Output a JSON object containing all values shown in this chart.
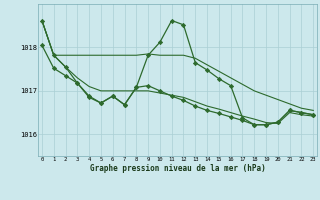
{
  "title": "Graphe pression niveau de la mer (hPa)",
  "background_color": "#cce8ec",
  "grid_color": "#aacfd4",
  "line_color": "#2d6a2d",
  "marker_color": "#2d6a2d",
  "x_ticks": [
    0,
    1,
    2,
    3,
    4,
    5,
    6,
    7,
    8,
    9,
    10,
    11,
    12,
    13,
    14,
    15,
    16,
    17,
    18,
    19,
    20,
    21,
    22,
    23
  ],
  "ylim": [
    1015.5,
    1019.0
  ],
  "yticks": [
    1016,
    1017,
    1018
  ],
  "series_smooth1": [
    1018.62,
    1017.82,
    1017.82,
    1017.82,
    1017.82,
    1017.82,
    1017.82,
    1017.82,
    1017.82,
    1017.85,
    1017.82,
    1017.82,
    1017.82,
    1017.75,
    1017.6,
    1017.45,
    1017.3,
    1017.15,
    1017.0,
    1016.9,
    1016.8,
    1016.7,
    1016.6,
    1016.55
  ],
  "series_smooth2": [
    1018.62,
    1017.82,
    1017.55,
    1017.3,
    1017.1,
    1017.0,
    1017.0,
    1017.0,
    1017.0,
    1017.0,
    1016.95,
    1016.9,
    1016.85,
    1016.75,
    1016.65,
    1016.58,
    1016.5,
    1016.42,
    1016.35,
    1016.27,
    1016.25,
    1016.5,
    1016.45,
    1016.42
  ],
  "series_marker1": [
    1018.62,
    1017.82,
    1017.55,
    1017.18,
    1016.85,
    1016.72,
    1016.88,
    1016.68,
    1017.08,
    1017.82,
    1018.12,
    1018.62,
    1018.52,
    1017.65,
    1017.48,
    1017.28,
    1017.12,
    1016.38,
    1016.22,
    1016.22,
    1016.28,
    1016.55,
    1016.5,
    1016.45
  ],
  "series_marker2": [
    1018.05,
    1017.52,
    1017.35,
    1017.18,
    1016.88,
    1016.72,
    1016.88,
    1016.68,
    1017.08,
    1017.12,
    1017.0,
    1016.88,
    1016.78,
    1016.65,
    1016.55,
    1016.48,
    1016.4,
    1016.32,
    1016.22,
    1016.22,
    1016.28,
    1016.55,
    1016.5,
    1016.45
  ]
}
